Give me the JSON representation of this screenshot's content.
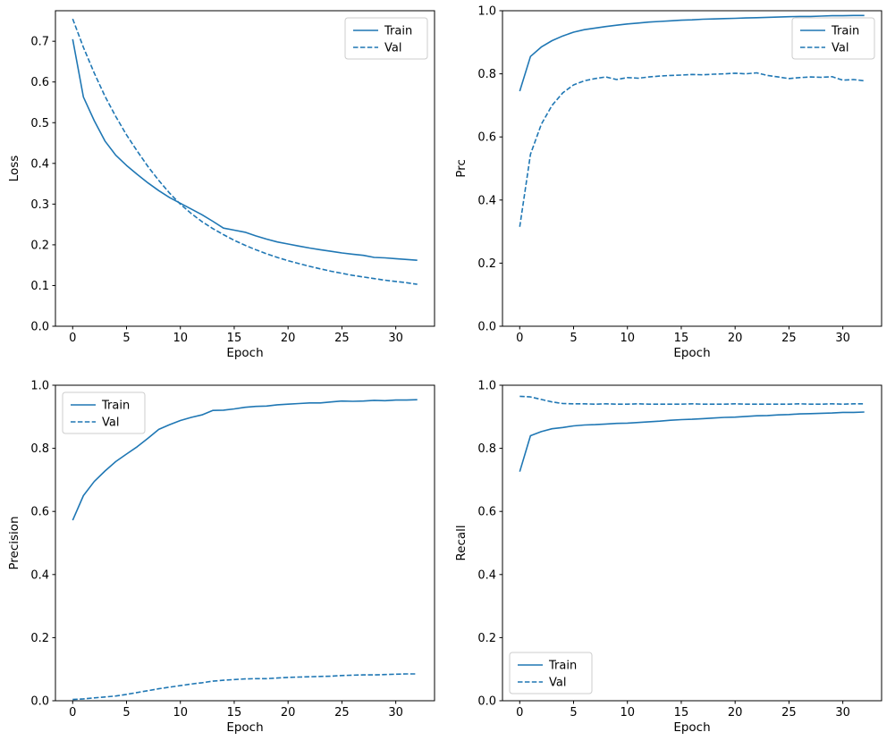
{
  "figure": {
    "background": "#ffffff",
    "line_color": "#1f77b4",
    "legend_border_color": "#cccccc"
  },
  "chart_data": [
    {
      "type": "line",
      "title": "",
      "xlabel": "Epoch",
      "ylabel": "Loss",
      "x": [
        0,
        1,
        2,
        3,
        4,
        5,
        6,
        7,
        8,
        9,
        10,
        11,
        12,
        13,
        14,
        15,
        16,
        17,
        18,
        19,
        20,
        21,
        22,
        23,
        24,
        25,
        26,
        27,
        28,
        29,
        30,
        31,
        32
      ],
      "series": [
        {
          "name": "Train",
          "style": "solid",
          "values": [
            0.705,
            0.563,
            0.505,
            0.455,
            0.42,
            0.395,
            0.373,
            0.352,
            0.333,
            0.316,
            0.302,
            0.288,
            0.274,
            0.258,
            0.241,
            0.236,
            0.231,
            0.222,
            0.214,
            0.207,
            0.202,
            0.197,
            0.192,
            0.188,
            0.184,
            0.18,
            0.177,
            0.174,
            0.169,
            0.168,
            0.166,
            0.164,
            0.162
          ]
        },
        {
          "name": "Val",
          "style": "dashed",
          "values": [
            0.755,
            0.685,
            0.622,
            0.565,
            0.515,
            0.47,
            0.43,
            0.392,
            0.358,
            0.327,
            0.3,
            0.277,
            0.257,
            0.24,
            0.225,
            0.211,
            0.199,
            0.188,
            0.178,
            0.169,
            0.161,
            0.154,
            0.147,
            0.141,
            0.135,
            0.13,
            0.125,
            0.121,
            0.117,
            0.113,
            0.11,
            0.107,
            0.103
          ]
        }
      ],
      "xlim": [
        -1.6,
        33.6
      ],
      "ylim": [
        0,
        0.775
      ],
      "xticks": [
        0,
        5,
        10,
        15,
        20,
        25,
        30
      ],
      "yticks": [
        0.0,
        0.1,
        0.2,
        0.3,
        0.4,
        0.5,
        0.6,
        0.7
      ],
      "grid": false,
      "legend": {
        "position": "upper-right",
        "entries": [
          "Train",
          "Val"
        ]
      }
    },
    {
      "type": "line",
      "title": "",
      "xlabel": "Epoch",
      "ylabel": "Prc",
      "x": [
        0,
        1,
        2,
        3,
        4,
        5,
        6,
        7,
        8,
        9,
        10,
        11,
        12,
        13,
        14,
        15,
        16,
        17,
        18,
        19,
        20,
        21,
        22,
        23,
        24,
        25,
        26,
        27,
        28,
        29,
        30,
        31,
        32
      ],
      "series": [
        {
          "name": "Train",
          "style": "solid",
          "values": [
            0.745,
            0.855,
            0.885,
            0.905,
            0.92,
            0.932,
            0.94,
            0.945,
            0.95,
            0.954,
            0.958,
            0.961,
            0.964,
            0.966,
            0.968,
            0.97,
            0.971,
            0.973,
            0.974,
            0.975,
            0.976,
            0.977,
            0.978,
            0.979,
            0.98,
            0.981,
            0.982,
            0.982,
            0.983,
            0.984,
            0.984,
            0.985,
            0.985
          ]
        },
        {
          "name": "Val",
          "style": "dashed",
          "values": [
            0.315,
            0.545,
            0.64,
            0.7,
            0.74,
            0.765,
            0.778,
            0.785,
            0.79,
            0.782,
            0.788,
            0.786,
            0.79,
            0.793,
            0.795,
            0.796,
            0.798,
            0.797,
            0.799,
            0.8,
            0.802,
            0.8,
            0.803,
            0.795,
            0.79,
            0.785,
            0.788,
            0.79,
            0.789,
            0.791,
            0.78,
            0.782,
            0.778
          ]
        }
      ],
      "xlim": [
        -1.6,
        33.6
      ],
      "ylim": [
        0,
        1.0
      ],
      "xticks": [
        0,
        5,
        10,
        15,
        20,
        25,
        30
      ],
      "yticks": [
        0.0,
        0.2,
        0.4,
        0.6,
        0.8,
        1.0
      ],
      "grid": false,
      "legend": {
        "position": "upper-right",
        "entries": [
          "Train",
          "Val"
        ]
      }
    },
    {
      "type": "line",
      "title": "",
      "xlabel": "Epoch",
      "ylabel": "Precision",
      "x": [
        0,
        1,
        2,
        3,
        4,
        5,
        6,
        7,
        8,
        9,
        10,
        11,
        12,
        13,
        14,
        15,
        16,
        17,
        18,
        19,
        20,
        21,
        22,
        23,
        24,
        25,
        26,
        27,
        28,
        29,
        30,
        31,
        32
      ],
      "series": [
        {
          "name": "Train",
          "style": "solid",
          "values": [
            0.572,
            0.65,
            0.695,
            0.728,
            0.758,
            0.782,
            0.805,
            0.832,
            0.86,
            0.875,
            0.888,
            0.898,
            0.906,
            0.92,
            0.921,
            0.925,
            0.93,
            0.933,
            0.934,
            0.938,
            0.94,
            0.942,
            0.944,
            0.944,
            0.947,
            0.95,
            0.949,
            0.95,
            0.952,
            0.951,
            0.953,
            0.953,
            0.954
          ]
        },
        {
          "name": "Val",
          "style": "dashed",
          "values": [
            0.004,
            0.006,
            0.009,
            0.012,
            0.015,
            0.02,
            0.026,
            0.032,
            0.038,
            0.043,
            0.048,
            0.053,
            0.057,
            0.062,
            0.065,
            0.067,
            0.069,
            0.07,
            0.07,
            0.072,
            0.074,
            0.075,
            0.076,
            0.077,
            0.078,
            0.08,
            0.081,
            0.082,
            0.082,
            0.083,
            0.084,
            0.085,
            0.085
          ]
        }
      ],
      "xlim": [
        -1.6,
        33.6
      ],
      "ylim": [
        0,
        1.0
      ],
      "xticks": [
        0,
        5,
        10,
        15,
        20,
        25,
        30
      ],
      "yticks": [
        0.0,
        0.2,
        0.4,
        0.6,
        0.8,
        1.0
      ],
      "grid": false,
      "legend": {
        "position": "upper-left",
        "entries": [
          "Train",
          "Val"
        ]
      }
    },
    {
      "type": "line",
      "title": "",
      "xlabel": "Epoch",
      "ylabel": "Recall",
      "x": [
        0,
        1,
        2,
        3,
        4,
        5,
        6,
        7,
        8,
        9,
        10,
        11,
        12,
        13,
        14,
        15,
        16,
        17,
        18,
        19,
        20,
        21,
        22,
        23,
        24,
        25,
        26,
        27,
        28,
        29,
        30,
        31,
        32
      ],
      "series": [
        {
          "name": "Train",
          "style": "solid",
          "values": [
            0.726,
            0.84,
            0.853,
            0.862,
            0.866,
            0.871,
            0.874,
            0.875,
            0.877,
            0.879,
            0.88,
            0.882,
            0.884,
            0.886,
            0.889,
            0.891,
            0.892,
            0.894,
            0.896,
            0.898,
            0.899,
            0.901,
            0.903,
            0.904,
            0.906,
            0.907,
            0.909,
            0.91,
            0.911,
            0.912,
            0.914,
            0.914,
            0.915
          ]
        },
        {
          "name": "Val",
          "style": "dashed",
          "values": [
            0.965,
            0.963,
            0.955,
            0.947,
            0.942,
            0.941,
            0.941,
            0.94,
            0.941,
            0.94,
            0.94,
            0.941,
            0.94,
            0.94,
            0.94,
            0.94,
            0.941,
            0.94,
            0.94,
            0.94,
            0.941,
            0.94,
            0.94,
            0.94,
            0.94,
            0.94,
            0.941,
            0.94,
            0.94,
            0.941,
            0.94,
            0.941,
            0.941
          ]
        }
      ],
      "xlim": [
        -1.6,
        33.6
      ],
      "ylim": [
        0,
        1.0
      ],
      "xticks": [
        0,
        5,
        10,
        15,
        20,
        25,
        30
      ],
      "yticks": [
        0.0,
        0.2,
        0.4,
        0.6,
        0.8,
        1.0
      ],
      "grid": false,
      "legend": {
        "position": "lower-left",
        "entries": [
          "Train",
          "Val"
        ]
      }
    }
  ]
}
